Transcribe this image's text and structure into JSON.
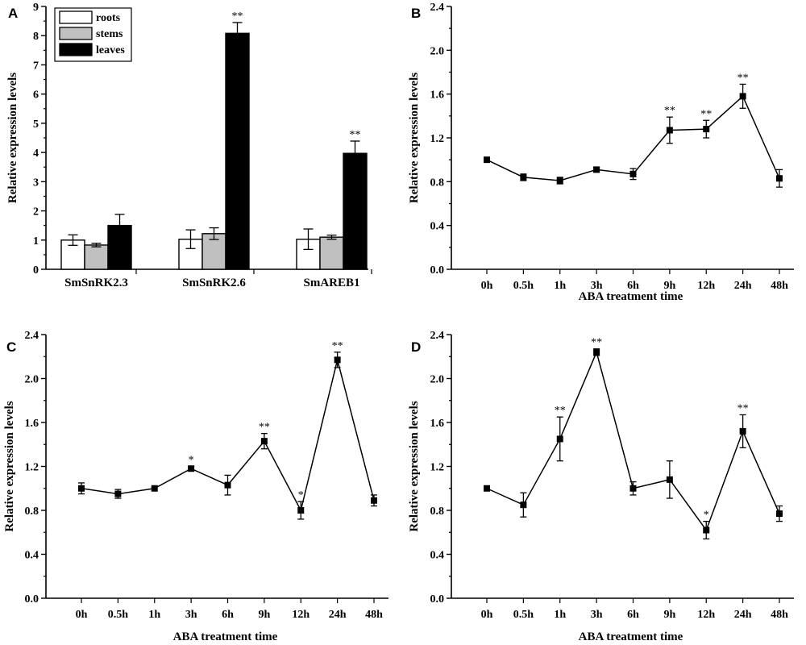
{
  "chart_data": [
    {
      "panel": "A",
      "type": "bar",
      "title": "",
      "xlabel": "",
      "ylabel": "Relative expression levels",
      "ylim": [
        0,
        9
      ],
      "yticks": [
        "0",
        "1",
        "2",
        "3",
        "4",
        "5",
        "6",
        "7",
        "8",
        "9"
      ],
      "categories": [
        "SmSnRK2.3",
        "SmSnRK2.6",
        "SmAREB1"
      ],
      "legend_position": "top-left",
      "series": [
        {
          "name": "roots",
          "color": "#ffffff",
          "values": [
            1.0,
            1.03,
            1.03
          ],
          "errors": [
            0.18,
            0.32,
            0.35
          ],
          "significance": [
            "",
            "",
            ""
          ]
        },
        {
          "name": "stems",
          "color": "#c0c0c0",
          "values": [
            0.83,
            1.22,
            1.1
          ],
          "errors": [
            0.06,
            0.2,
            0.07
          ],
          "significance": [
            "",
            "",
            ""
          ]
        },
        {
          "name": "leaves",
          "color": "#000000",
          "values": [
            1.5,
            8.08,
            3.97
          ],
          "errors": [
            0.38,
            0.37,
            0.42
          ],
          "significance": [
            "",
            "**",
            "**"
          ]
        }
      ]
    },
    {
      "panel": "B",
      "type": "line",
      "title": "",
      "xlabel": "ABA treatment time",
      "ylabel": "Relative expression levels",
      "ylim": [
        0,
        2.4
      ],
      "yticks": [
        "0.0",
        "0.4",
        "0.8",
        "1.2",
        "1.6",
        "2.0",
        "2.4"
      ],
      "categories": [
        "0h",
        "0.5h",
        "1h",
        "3h",
        "6h",
        "9h",
        "12h",
        "24h",
        "48h"
      ],
      "values": [
        1.0,
        0.84,
        0.81,
        0.91,
        0.87,
        1.27,
        1.28,
        1.58,
        0.83
      ],
      "errors": [
        0.01,
        0.03,
        0.03,
        0.02,
        0.05,
        0.12,
        0.08,
        0.11,
        0.08
      ],
      "significance": [
        "",
        "",
        "",
        "",
        "",
        "**",
        "**",
        "**",
        ""
      ]
    },
    {
      "panel": "C",
      "type": "line",
      "title": "",
      "xlabel": "ABA treatment time",
      "ylabel": "Relative expression levels",
      "ylim": [
        0,
        2.4
      ],
      "yticks": [
        "0.0",
        "0.4",
        "0.8",
        "1.2",
        "1.6",
        "2.0",
        "2.4"
      ],
      "categories": [
        "0h",
        "0.5h",
        "1h",
        "3h",
        "6h",
        "9h",
        "12h",
        "24h",
        "48h"
      ],
      "values": [
        1.0,
        0.95,
        1.0,
        1.18,
        1.03,
        1.43,
        0.8,
        2.17,
        0.89
      ],
      "errors": [
        0.05,
        0.04,
        0.01,
        0.02,
        0.09,
        0.07,
        0.08,
        0.07,
        0.05
      ],
      "significance": [
        "",
        "",
        "",
        "*",
        "",
        "**",
        "*",
        "**",
        ""
      ]
    },
    {
      "panel": "D",
      "type": "line",
      "title": "",
      "xlabel": "ABA treatment time",
      "ylabel": "Relative expression levels",
      "ylim": [
        0,
        2.4
      ],
      "yticks": [
        "0.0",
        "0.4",
        "0.8",
        "1.2",
        "1.6",
        "2.0",
        "2.4"
      ],
      "categories": [
        "0h",
        "0.5h",
        "1h",
        "3h",
        "6h",
        "9h",
        "12h",
        "24h",
        "48h"
      ],
      "values": [
        1.0,
        0.85,
        1.45,
        2.24,
        1.0,
        1.08,
        0.62,
        1.52,
        0.77
      ],
      "errors": [
        0.01,
        0.11,
        0.2,
        0.03,
        0.06,
        0.17,
        0.08,
        0.15,
        0.07
      ],
      "significance": [
        "",
        "",
        "**",
        "**",
        "",
        "",
        "*",
        "**",
        ""
      ]
    }
  ]
}
